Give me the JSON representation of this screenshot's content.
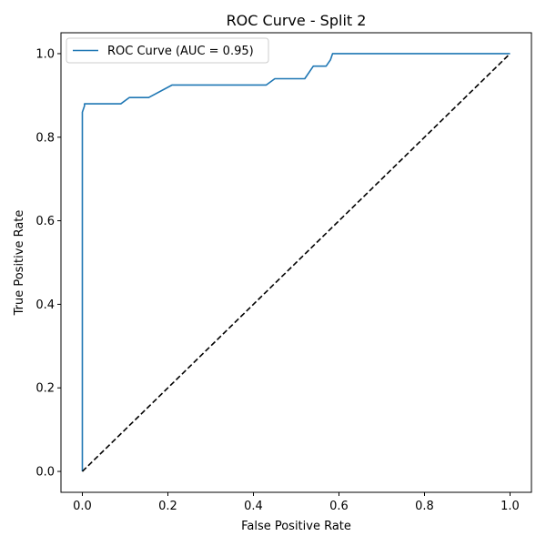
{
  "chart_data": {
    "type": "line",
    "title": "ROC Curve - Split 2",
    "xlabel": "False Positive Rate",
    "ylabel": "True Positive Rate",
    "xlim": [
      -0.05,
      1.05
    ],
    "ylim": [
      -0.05,
      1.05
    ],
    "xticks": [
      0.0,
      0.2,
      0.4,
      0.6,
      0.8,
      1.0
    ],
    "yticks": [
      0.0,
      0.2,
      0.4,
      0.6,
      0.8,
      1.0
    ],
    "xtick_labels": [
      "0.0",
      "0.2",
      "0.4",
      "0.6",
      "0.8",
      "1.0"
    ],
    "ytick_labels": [
      "0.0",
      "0.2",
      "0.4",
      "0.6",
      "0.8",
      "1.0"
    ],
    "grid": false,
    "legend_position": "upper-left",
    "series": [
      {
        "name": "ROC Curve (AUC = 0.95)",
        "color": "#1f77b4",
        "style": "solid",
        "x": [
          0.0,
          0.0,
          0.005,
          0.005,
          0.09,
          0.11,
          0.155,
          0.21,
          0.43,
          0.45,
          0.52,
          0.54,
          0.57,
          0.58,
          0.585,
          1.0
        ],
        "y": [
          0.0,
          0.86,
          0.875,
          0.88,
          0.88,
          0.895,
          0.895,
          0.925,
          0.925,
          0.94,
          0.94,
          0.97,
          0.97,
          0.985,
          1.0,
          1.0
        ]
      },
      {
        "name": "",
        "color": "#000000",
        "style": "dashed",
        "x": [
          0.0,
          1.0
        ],
        "y": [
          0.0,
          1.0
        ]
      }
    ]
  }
}
